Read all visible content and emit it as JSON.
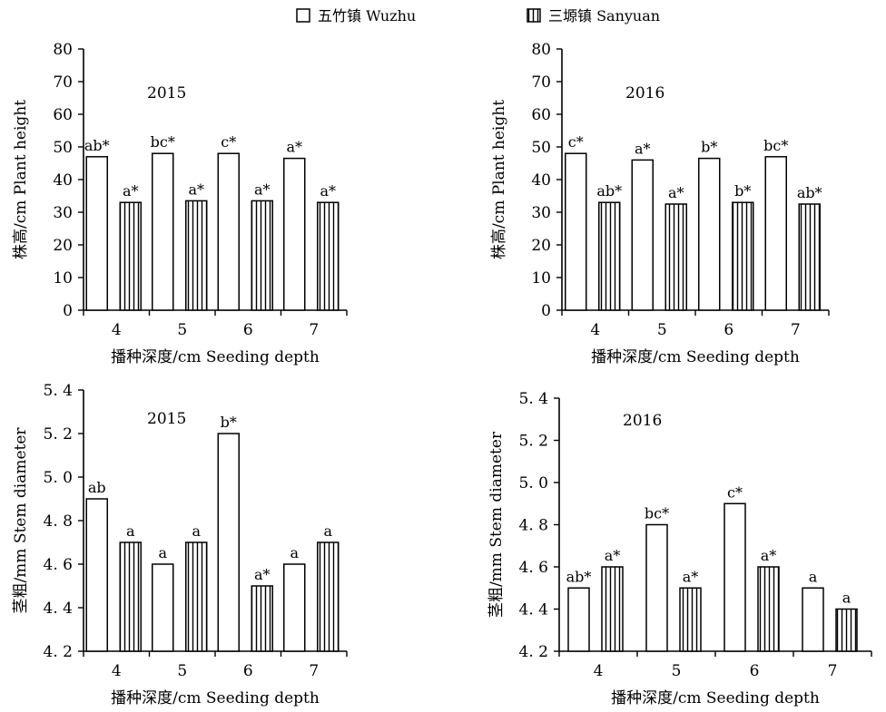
{
  "legend": [
    {
      "label": "五竹镇 Wuzhu",
      "pattern": "open"
    },
    {
      "label": "三塬镇 Sanyuan",
      "pattern": "vertical-hatch"
    }
  ],
  "chart_data": [
    {
      "type": "bar",
      "year_label": "2015",
      "categories": [
        "4",
        "5",
        "6",
        "7"
      ],
      "xlabel": "播种深度/cm  Seeding depth",
      "ylabel": "株高/cm  Plant height",
      "ylim": [
        0,
        80
      ],
      "yticks": [
        "0",
        "10",
        "20",
        "30",
        "40",
        "50",
        "60",
        "70",
        "80"
      ],
      "series": [
        {
          "name": "五竹镇 Wuzhu",
          "values": [
            47,
            48,
            48,
            46.5
          ],
          "labels": [
            "ab*",
            "bc*",
            "c*",
            "a*"
          ]
        },
        {
          "name": "三塬镇 Sanyuan",
          "values": [
            33,
            33.5,
            33.5,
            33
          ],
          "labels": [
            "a*",
            "a*",
            "a*",
            "a*"
          ]
        }
      ]
    },
    {
      "type": "bar",
      "year_label": "2016",
      "categories": [
        "4",
        "5",
        "6",
        "7"
      ],
      "xlabel": "播种深度/cm  Seeding depth",
      "ylabel": "株高/cm  Plant height",
      "ylim": [
        0,
        80
      ],
      "yticks": [
        "0",
        "10",
        "20",
        "30",
        "40",
        "50",
        "60",
        "70",
        "80"
      ],
      "series": [
        {
          "name": "五竹镇 Wuzhu",
          "values": [
            48,
            46,
            46.5,
            47
          ],
          "labels": [
            "c*",
            "a*",
            "b*",
            "bc*"
          ]
        },
        {
          "name": "三塬镇 Sanyuan",
          "values": [
            33,
            32.5,
            33,
            32.5
          ],
          "labels": [
            "ab*",
            "a*",
            "b*",
            "ab*"
          ]
        }
      ]
    },
    {
      "type": "bar",
      "year_label": "2015",
      "categories": [
        "4",
        "5",
        "6",
        "7"
      ],
      "xlabel": "播种深度/cm  Seeding depth",
      "ylabel": "茎粗/mm  Stem diameter",
      "ylim": [
        4.2,
        5.4
      ],
      "yticks": [
        "4. 2",
        "4. 4",
        "4. 6",
        "4. 8",
        "5. 0",
        "5. 2",
        "5. 4"
      ],
      "series": [
        {
          "name": "五竹镇 Wuzhu",
          "values": [
            4.9,
            4.6,
            5.2,
            4.6
          ],
          "labels": [
            "ab",
            "a",
            "b*",
            "a"
          ]
        },
        {
          "name": "三塬镇 Sanyuan",
          "values": [
            4.7,
            4.7,
            4.5,
            4.7
          ],
          "labels": [
            "a",
            "a",
            "a*",
            "a"
          ]
        }
      ]
    },
    {
      "type": "bar",
      "year_label": "2016",
      "categories": [
        "4",
        "5",
        "6",
        "7"
      ],
      "xlabel": "播种深度/cm  Seeding depth",
      "ylabel": "茎粗/mm  Stem diameter",
      "ylim": [
        4.2,
        5.4
      ],
      "yticks": [
        "4. 2",
        "4. 4",
        "4. 6",
        "4. 8",
        "5. 0",
        "5. 2",
        "5. 4"
      ],
      "series": [
        {
          "name": "五竹镇 Wuzhu",
          "values": [
            4.5,
            4.8,
            4.9,
            4.5
          ],
          "labels": [
            "ab*",
            "bc*",
            "c*",
            "a"
          ]
        },
        {
          "name": "三塬镇 Sanyuan",
          "values": [
            4.6,
            4.5,
            4.6,
            4.4
          ],
          "labels": [
            "a*",
            "a*",
            "a*",
            "a"
          ]
        }
      ]
    }
  ]
}
